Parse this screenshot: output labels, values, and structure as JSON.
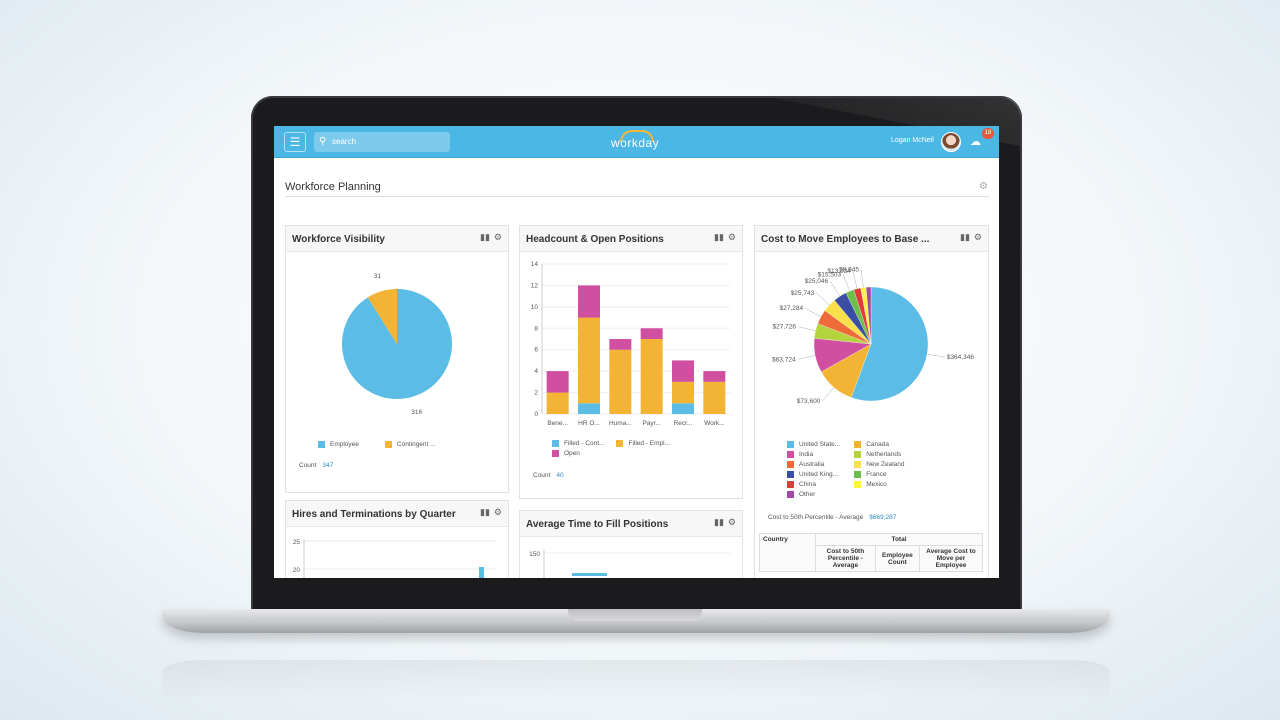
{
  "topbar": {
    "menu_icon": "hamburger-icon",
    "search_placeholder": "search",
    "logo": "workday",
    "user_name": "Logan McNeil",
    "inbox_count": "18"
  },
  "page": {
    "title": "Workforce Planning"
  },
  "panels": {
    "workforce_visibility": {
      "title": "Workforce Visibility",
      "chart_data": {
        "type": "pie",
        "slices": [
          {
            "label": "Employee",
            "value": 316,
            "color": "#5bbde6"
          },
          {
            "label": "Contingent ...",
            "value": 31,
            "color": "#f3b334"
          }
        ]
      },
      "count_label": "Count",
      "count_value": "347"
    },
    "headcount": {
      "title": "Headcount & Open Positions",
      "chart_data": {
        "type": "bar",
        "stacked": true,
        "categories": [
          "Bene...",
          "HR O...",
          "Huma...",
          "Payr...",
          "Recr...",
          "Work..."
        ],
        "series": [
          {
            "name": "Filled - Cont...",
            "color": "#5bbde6",
            "values": [
              0,
              1,
              0,
              0,
              1,
              0
            ]
          },
          {
            "name": "Filled - Empl...",
            "color": "#f3b334",
            "values": [
              2,
              8,
              6,
              7,
              2,
              3
            ]
          },
          {
            "name": "Open",
            "color": "#d04fa0",
            "values": [
              2,
              3,
              1,
              1,
              2,
              1
            ]
          }
        ],
        "ylim": [
          0,
          14
        ],
        "yticks": [
          0,
          2,
          4,
          6,
          8,
          10,
          12,
          14
        ]
      },
      "count_label": "Count",
      "count_value": "40"
    },
    "cost_to_move": {
      "title": "Cost to Move Employees to Base ...",
      "chart_data": {
        "type": "pie",
        "slices": [
          {
            "label": "United State...",
            "value": 364346,
            "text": "$364,346",
            "color": "#5bbde6"
          },
          {
            "label": "Canada",
            "value": 73600,
            "text": "$73,600",
            "color": "#f3b334"
          },
          {
            "label": "India",
            "value": 63724,
            "text": "$63,724",
            "color": "#d04fa0"
          },
          {
            "label": "Netherlands",
            "value": 27726,
            "text": "$27,726",
            "color": "#b5d33d"
          },
          {
            "label": "Australia",
            "value": 27284,
            "text": "$27,284",
            "color": "#ee6a3a"
          },
          {
            "label": "New Zealand",
            "value": 25743,
            "text": "$25,743",
            "color": "#f7e04a"
          },
          {
            "label": "United King...",
            "value": 25046,
            "text": "$25,046",
            "color": "#3b4ea3"
          },
          {
            "label": "France",
            "value": 15503,
            "text": "$15,503",
            "color": "#6dbf4b"
          },
          {
            "label": "China",
            "value": 13034,
            "text": "$13,034",
            "color": "#e2393b"
          },
          {
            "label": "Mexico",
            "value": 9945,
            "text": "$9,945",
            "color": "#fff04a"
          },
          {
            "label": "Other",
            "value": 9000,
            "text": "",
            "color": "#a04aa8"
          }
        ]
      },
      "summary_label": "Cost to 50th Percentile - Average",
      "summary_value": "$669,287",
      "table_headers": {
        "country": "Country",
        "total": "Total",
        "col1": "Cost to 50th Percentile - Average",
        "col2": "Employee Count",
        "col3": "Average Cost to Move per Employee"
      }
    },
    "hires": {
      "title": "Hires and Terminations by Quarter",
      "yticks": [
        "25",
        "20"
      ]
    },
    "time_to_fill": {
      "title": "Average Time to Fill Positions",
      "ytick": "150"
    }
  }
}
